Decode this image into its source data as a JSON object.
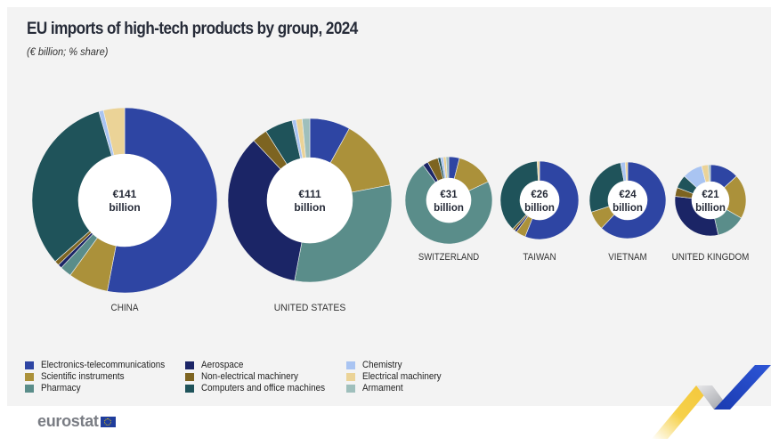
{
  "chart_data": {
    "type": "pie",
    "subtype": "donut",
    "title": "EU imports of high-tech products by group, 2024",
    "subtitle": "(€ billion; % share)",
    "unit": "% share",
    "categories": [
      "Electronics-telecommunications",
      "Scientific instruments",
      "Pharmacy",
      "Aerospace",
      "Non-electrical machinery",
      "Computers and office machines",
      "Chemistry",
      "Electrical machinery",
      "Armament"
    ],
    "colors": {
      "Electronics-telecommunications": "#2e45a3",
      "Scientific instruments": "#ab913a",
      "Pharmacy": "#5a8d8a",
      "Aerospace": "#1b2566",
      "Non-electrical machinery": "#7d6421",
      "Computers and office machines": "#1f535a",
      "Chemistry": "#a9c4f2",
      "Electrical machinery": "#ebd397",
      "Armament": "#9fbfbc"
    },
    "series": [
      {
        "name": "CHINA",
        "total_label": "€141",
        "total_unit": "billion",
        "total": 141,
        "values": [
          53.0,
          7.0,
          2.0,
          0.7,
          0.8,
          32.0,
          0.8,
          3.7,
          0.0
        ]
      },
      {
        "name": "UNITED STATES",
        "total_label": "€111",
        "total_unit": "billion",
        "total": 111,
        "values": [
          8.0,
          14.0,
          31.0,
          35.0,
          3.0,
          5.5,
          0.8,
          1.2,
          1.5
        ]
      },
      {
        "name": "SWITZERLAND",
        "total_label": "€31",
        "total_unit": "billion",
        "total": 31,
        "values": [
          4.0,
          14.0,
          72.0,
          2.0,
          4.0,
          1.0,
          1.0,
          1.0,
          1.0
        ]
      },
      {
        "name": "TAIWAN",
        "total_label": "€26",
        "total_unit": "billion",
        "total": 26,
        "values": [
          56.0,
          4.0,
          0.0,
          1.0,
          1.0,
          37.0,
          0.0,
          1.0,
          0.0
        ]
      },
      {
        "name": "VIETNAM",
        "total_label": "€24",
        "total_unit": "billion",
        "total": 24,
        "values": [
          62.0,
          8.0,
          0.0,
          0.0,
          0.0,
          27.0,
          2.0,
          1.0,
          0.0
        ]
      },
      {
        "name": "UNITED KINGDOM",
        "total_label": "€21",
        "total_unit": "billion",
        "total": 21,
        "values": [
          13.0,
          20.0,
          13.0,
          30.0,
          4.0,
          6.0,
          9.0,
          3.0,
          1.0
        ]
      }
    ],
    "legend_position": "bottom-left"
  },
  "header": {
    "title": "EU imports of high-tech products by group, 2024",
    "subtitle": "(€ billion; % share)"
  },
  "legend": [
    {
      "label": "Electronics-telecommunications",
      "color": "#2e45a3"
    },
    {
      "label": "Scientific instruments",
      "color": "#ab913a"
    },
    {
      "label": "Pharmacy",
      "color": "#5a8d8a"
    },
    {
      "label": "Aerospace",
      "color": "#1b2566"
    },
    {
      "label": "Non-electrical machinery",
      "color": "#7d6421"
    },
    {
      "label": "Computers and office machines",
      "color": "#1f535a"
    },
    {
      "label": "Chemistry",
      "color": "#a9c4f2"
    },
    {
      "label": "Electrical machinery",
      "color": "#ebd397"
    },
    {
      "label": "Armament",
      "color": "#9fbfbc"
    }
  ],
  "footer": {
    "brand": "eurostat",
    "brand_color": "#7a7d84"
  }
}
